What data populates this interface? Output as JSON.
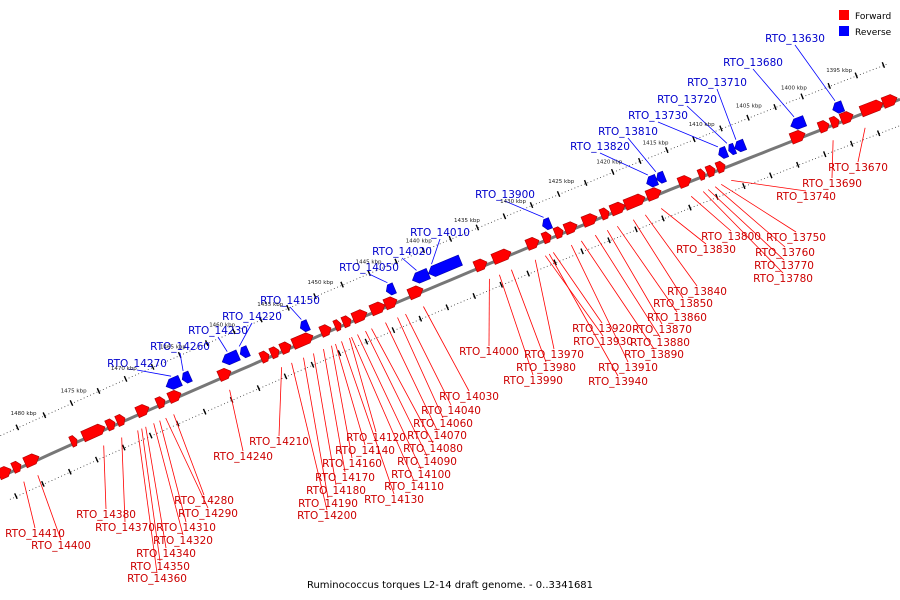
{
  "caption": "Ruminococcus torques L2-14 draft genome. - 0..3341681",
  "legend": {
    "forward": {
      "label": "Forward",
      "color": "#ff0000"
    },
    "reverse": {
      "label": "Reverse",
      "color": "#0000ff"
    }
  },
  "colors": {
    "backbone": "#777777",
    "ticks": "#000000",
    "forward_text": "#cc0000",
    "reverse_text": "#0000cc",
    "leader": "#ff0000",
    "leader_rev": "#0000ff"
  },
  "kbp_labels": [
    "1395 kbp",
    "1400 kbp",
    "1405 kbp",
    "1410 kbp",
    "1415 kbp",
    "1420 kbp",
    "1425 kbp",
    "1430 kbp",
    "1435 kbp",
    "1440 kbp",
    "1445 kbp",
    "1450 kbp",
    "1455 kbp",
    "1460 kbp",
    "1465 kbp",
    "1470 kbp",
    "1475 kbp",
    "1480 kbp"
  ],
  "reverse_genes": [
    "RTO_13630",
    "RTO_13680",
    "RTO_13710",
    "RTO_13720",
    "RTO_13730",
    "RTO_13810",
    "RTO_13820",
    "RTO_13900",
    "RTO_14010",
    "RTO_14020",
    "RTO_14050",
    "RTO_14150",
    "RTO_14220",
    "RTO_14230",
    "RTO_14260",
    "RTO_14270"
  ],
  "forward_genes": [
    "RTO_13670",
    "RTO_13690",
    "RTO_13740",
    "RTO_13750",
    "RTO_13760",
    "RTO_13770",
    "RTO_13780",
    "RTO_13800",
    "RTO_13830",
    "RTO_13840",
    "RTO_13850",
    "RTO_13860",
    "RTO_13870",
    "RTO_13880",
    "RTO_13890",
    "RTO_13910",
    "RTO_13920",
    "RTO_13930",
    "RTO_13940",
    "RTO_13970",
    "RTO_13980",
    "RTO_13990",
    "RTO_14000",
    "RTO_14030",
    "RTO_14040",
    "RTO_14060",
    "RTO_14070",
    "RTO_14080",
    "RTO_14090",
    "RTO_14100",
    "RTO_14110",
    "RTO_14120",
    "RTO_14130",
    "RTO_14140",
    "RTO_14160",
    "RTO_14170",
    "RTO_14180",
    "RTO_14190",
    "RTO_14200",
    "RTO_14210",
    "RTO_14240",
    "RTO_14280",
    "RTO_14290",
    "RTO_14310",
    "RTO_14320",
    "RTO_14340",
    "RTO_14350",
    "RTO_14360",
    "RTO_14370",
    "RTO_14380",
    "RTO_14400",
    "RTO_14410"
  ]
}
